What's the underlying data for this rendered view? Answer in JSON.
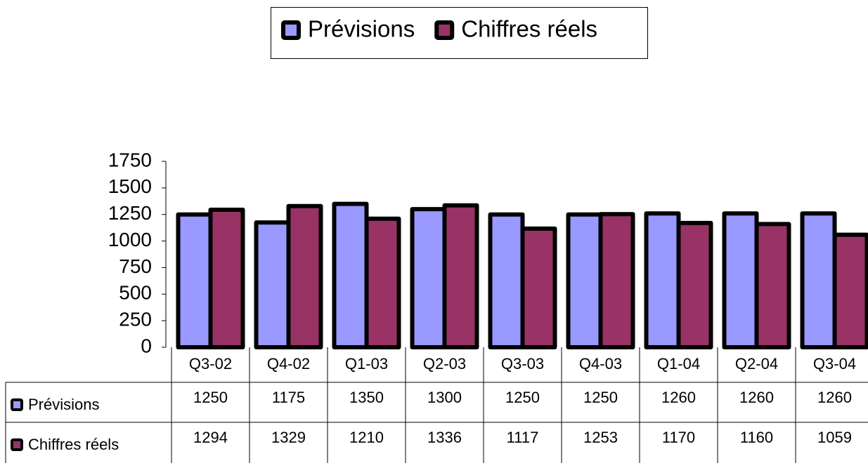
{
  "chart_data": {
    "type": "bar",
    "categories": [
      "Q3-02",
      "Q4-02",
      "Q1-03",
      "Q2-03",
      "Q3-03",
      "Q4-03",
      "Q1-04",
      "Q2-04",
      "Q3-04"
    ],
    "series": [
      {
        "name": "Prévisions",
        "color": "#9999ff",
        "values": [
          1250,
          1175,
          1350,
          1300,
          1250,
          1250,
          1260,
          1260,
          1260
        ]
      },
      {
        "name": "Chiffres réels",
        "color": "#993366",
        "values": [
          1294,
          1329,
          1210,
          1336,
          1117,
          1253,
          1170,
          1160,
          1059
        ]
      }
    ],
    "ylim": [
      0,
      1750
    ],
    "yticks": [
      0,
      250,
      500,
      750,
      1000,
      1250,
      1500,
      1750
    ],
    "legend": "top",
    "data_table": true
  }
}
